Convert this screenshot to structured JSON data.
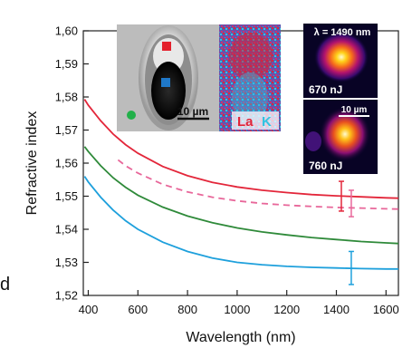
{
  "chart_data": {
    "type": "line",
    "xlabel": "Wavelength (nm)",
    "ylabel": "Refractive index",
    "xlim": [
      380,
      1650
    ],
    "ylim": [
      1.52,
      1.6
    ],
    "xticks": [
      400,
      600,
      800,
      1000,
      1200,
      1400,
      1600
    ],
    "xtick_labels": [
      "400",
      "600",
      "800",
      "1000",
      "1200",
      "1400",
      "1600"
    ],
    "yticks": [
      1.52,
      1.53,
      1.54,
      1.55,
      1.56,
      1.57,
      1.58,
      1.59,
      1.6
    ],
    "ytick_labels": [
      "1,52",
      "1,53",
      "1,54",
      "1,55",
      "1,56",
      "1,57",
      "1,58",
      "1,59",
      "1,60"
    ],
    "grid": false,
    "series": [
      {
        "color": "#e3263a",
        "dash": false,
        "x": [
          385,
          400,
          450,
          500,
          550,
          600,
          700,
          800,
          900,
          1000,
          1100,
          1200,
          1300,
          1400,
          1500,
          1600,
          1650
        ],
        "y": [
          1.5793,
          1.5775,
          1.5728,
          1.5688,
          1.5656,
          1.563,
          1.559,
          1.5562,
          1.5542,
          1.5528,
          1.5518,
          1.5511,
          1.5505,
          1.5501,
          1.5498,
          1.5495,
          1.5494
        ],
        "error_bar": {
          "x": 1420,
          "y": 1.55,
          "err": 0.0045
        }
      },
      {
        "color": "#e8679a",
        "dash": true,
        "x": [
          520,
          550,
          600,
          700,
          800,
          900,
          1000,
          1100,
          1200,
          1300,
          1400,
          1500,
          1600,
          1650
        ],
        "y": [
          1.561,
          1.5592,
          1.557,
          1.5536,
          1.5513,
          1.5497,
          1.5486,
          1.5478,
          1.5473,
          1.5469,
          1.5466,
          1.5464,
          1.5462,
          1.5461
        ],
        "error_bar": {
          "x": 1460,
          "y": 1.5478,
          "err": 0.004
        }
      },
      {
        "color": "#2f8a3a",
        "dash": false,
        "x": [
          385,
          400,
          450,
          500,
          550,
          600,
          700,
          800,
          900,
          1000,
          1100,
          1200,
          1300,
          1400,
          1500,
          1600,
          1650
        ],
        "y": [
          1.565,
          1.5635,
          1.5592,
          1.5556,
          1.5527,
          1.5503,
          1.5467,
          1.544,
          1.542,
          1.5404,
          1.5392,
          1.5383,
          1.5375,
          1.5369,
          1.5363,
          1.5359,
          1.5357
        ]
      },
      {
        "color": "#1ea0dc",
        "dash": false,
        "x": [
          385,
          400,
          450,
          500,
          550,
          600,
          700,
          800,
          900,
          1000,
          1100,
          1200,
          1300,
          1400,
          1500,
          1600,
          1650
        ],
        "y": [
          1.556,
          1.5543,
          1.5497,
          1.5458,
          1.5426,
          1.54,
          1.5361,
          1.5333,
          1.5313,
          1.53,
          1.5293,
          1.5288,
          1.5285,
          1.5283,
          1.5281,
          1.528,
          1.528
        ],
        "error_bar": {
          "x": 1460,
          "y": 1.5283,
          "err": 0.005
        }
      }
    ]
  },
  "insets": {
    "micrograph": {
      "scale_label": "10 µm",
      "markers": [
        {
          "name": "red-square",
          "color": "#e4202c"
        },
        {
          "name": "blue-square",
          "color": "#1f78c8"
        },
        {
          "name": "green-circle",
          "color": "#22b04a"
        }
      ]
    },
    "eds_map": {
      "label_1": "La",
      "label_2": "K",
      "color_1": "#e0263a",
      "color_2": "#33c3e0"
    },
    "mode_top": {
      "wavelength_label": "λ = 1490 nm",
      "energy_label": "670 nJ"
    },
    "mode_bottom": {
      "scale_label": "10 µm",
      "energy_label": "760 nJ"
    }
  },
  "edge_fragment": "d"
}
